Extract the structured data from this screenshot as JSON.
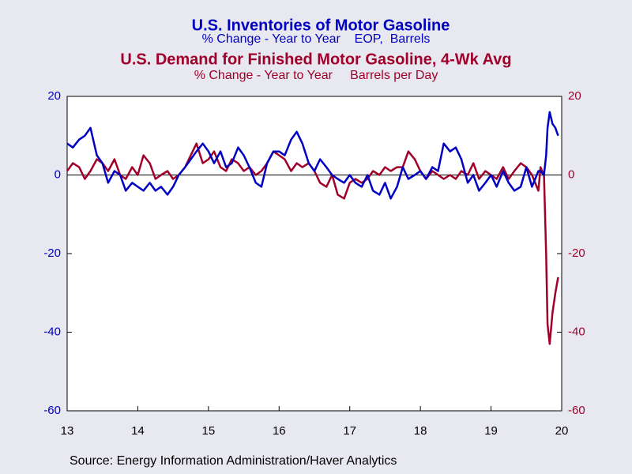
{
  "chart_data": {
    "type": "line",
    "title": "U.S. Inventories of Motor Gasoline",
    "subtitle": "% Change - Year to Year    EOP,  Barrels",
    "title2": "U.S. Demand for Finished Motor Gasoline, 4-Wk Avg",
    "subtitle2": "% Change - Year to Year     Barrels per Day",
    "source": "Source:  Energy Information Administration/Haver Analytics",
    "x": [
      2013,
      2013.08,
      2013.17,
      2013.25,
      2013.33,
      2013.42,
      2013.5,
      2013.58,
      2013.67,
      2013.75,
      2013.83,
      2013.92,
      2014,
      2014.08,
      2014.17,
      2014.25,
      2014.33,
      2014.42,
      2014.5,
      2014.58,
      2014.67,
      2014.75,
      2014.83,
      2014.92,
      2015,
      2015.08,
      2015.17,
      2015.25,
      2015.33,
      2015.42,
      2015.5,
      2015.58,
      2015.67,
      2015.75,
      2015.83,
      2015.92,
      2016,
      2016.08,
      2016.17,
      2016.25,
      2016.33,
      2016.42,
      2016.5,
      2016.58,
      2016.67,
      2016.75,
      2016.83,
      2016.92,
      2017,
      2017.08,
      2017.17,
      2017.25,
      2017.33,
      2017.42,
      2017.5,
      2017.58,
      2017.67,
      2017.75,
      2017.83,
      2017.92,
      2018,
      2018.08,
      2018.17,
      2018.25,
      2018.33,
      2018.42,
      2018.5,
      2018.58,
      2018.67,
      2018.75,
      2018.83,
      2018.92,
      2019,
      2019.08,
      2019.17,
      2019.25,
      2019.33,
      2019.42,
      2019.5,
      2019.58,
      2019.67,
      2019.7,
      2019.75,
      2019.78,
      2019.8,
      2019.83,
      2019.87,
      2019.91,
      2019.95
    ],
    "series": [
      {
        "name": "U.S. Inventories of Motor Gasoline",
        "color": "#0000c0",
        "axis": "y",
        "values": [
          8,
          7,
          9,
          10,
          12,
          5,
          3,
          -2,
          1,
          0,
          -4,
          -2,
          -3,
          -4,
          -2,
          -4,
          -3,
          -5,
          -3,
          0,
          2,
          4,
          6,
          8,
          6,
          3,
          6,
          2,
          3,
          7,
          5,
          2,
          -2,
          -3,
          3,
          6,
          6,
          5,
          9,
          11,
          8,
          3,
          1,
          4,
          2,
          0,
          -1,
          -2,
          0,
          -2,
          -3,
          0,
          -4,
          -5,
          -2,
          -6,
          -3,
          2,
          -1,
          0,
          1,
          -1,
          2,
          1,
          8,
          6,
          7,
          4,
          -2,
          0,
          -4,
          -2,
          0,
          -3,
          1,
          -2,
          -4,
          -3,
          2,
          -3,
          1,
          1,
          0,
          5,
          12,
          16,
          13,
          12,
          10
        ]
      },
      {
        "name": "U.S. Demand for Finished Motor Gasoline, 4-Wk Avg",
        "color": "#a0002a",
        "axis": "y2",
        "values": [
          1,
          3,
          2,
          -1,
          1,
          4,
          3,
          1,
          4,
          0,
          -1,
          2,
          0,
          5,
          3,
          -1,
          0,
          1,
          -1,
          0,
          2,
          5,
          8,
          3,
          4,
          6,
          2,
          1,
          4,
          3,
          1,
          2,
          0,
          1,
          3,
          6,
          5,
          4,
          1,
          3,
          2,
          3,
          1,
          -2,
          -3,
          0,
          -5,
          -6,
          -2,
          -1,
          -2,
          -1,
          1,
          0,
          2,
          1,
          2,
          2,
          6,
          4,
          1,
          -1,
          1,
          0,
          -1,
          0,
          -1,
          1,
          0,
          3,
          -1,
          1,
          0,
          -1,
          2,
          -1,
          1,
          3,
          2,
          0,
          -4,
          2,
          0,
          -20,
          -38,
          -43,
          -35,
          -30,
          -26
        ]
      }
    ],
    "xlim": [
      2013,
      2020
    ],
    "xticks": [
      {
        "value": 2013,
        "label": "13"
      },
      {
        "value": 2014,
        "label": "14"
      },
      {
        "value": 2015,
        "label": "15"
      },
      {
        "value": 2016,
        "label": "16"
      },
      {
        "value": 2017,
        "label": "17"
      },
      {
        "value": 2018,
        "label": "18"
      },
      {
        "value": 2019,
        "label": "19"
      },
      {
        "value": 2020,
        "label": "20"
      }
    ],
    "ylim": [
      -60,
      20
    ],
    "yticks": [
      20,
      0,
      -20,
      -40,
      -60
    ],
    "y2lim": [
      -60,
      20
    ],
    "y2ticks": [
      20,
      0,
      -20,
      -40,
      -60
    ]
  }
}
